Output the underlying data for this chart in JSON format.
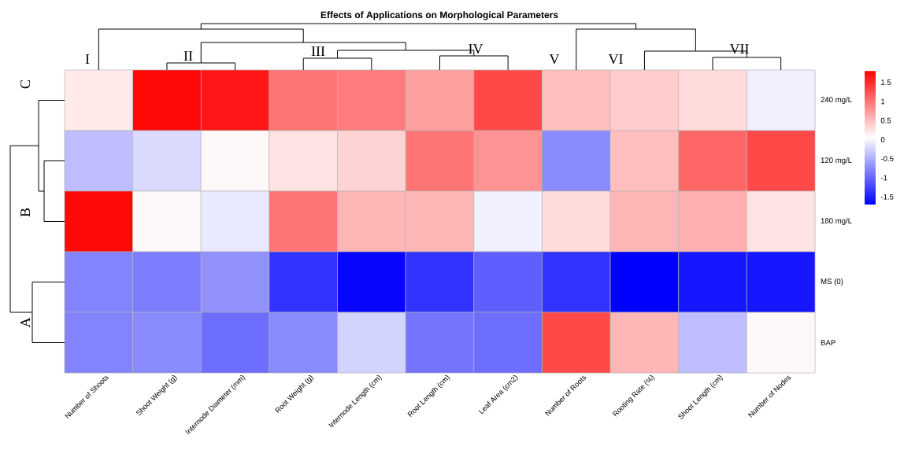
{
  "chart_data": {
    "type": "heatmap",
    "title": "Effects of Applications on Morphological Parameters",
    "categories": [
      "Number of Shoots",
      "Shoot Weight (g)",
      "Internode Diameter (mm)",
      "Root Weight (g)",
      "Internode Length (cm)",
      "Root Length (cm)",
      "Leaf Area (cm2)",
      "Number of Roots",
      "Rooting Rate (%)",
      "Shoot Length (cm)",
      "Number of Nodes"
    ],
    "y_categories": [
      "240 mg/L",
      "120 mg/L",
      "180 mg/L",
      "MS (0)",
      "BAP"
    ],
    "cells": [
      [
        0.2,
        1.75,
        1.65,
        1.0,
        0.95,
        0.7,
        1.3,
        0.5,
        0.4,
        0.3,
        -0.05
      ],
      [
        -0.4,
        -0.2,
        0.1,
        0.25,
        0.35,
        1.0,
        0.8,
        -0.75,
        0.5,
        1.1,
        1.3
      ],
      [
        1.75,
        0.1,
        -0.1,
        1.0,
        0.55,
        0.55,
        -0.05,
        0.3,
        0.55,
        0.6,
        0.25
      ],
      [
        -0.8,
        -0.85,
        -0.7,
        -1.35,
        -1.65,
        -1.35,
        -1.05,
        -1.35,
        -1.7,
        -1.55,
        -1.55
      ],
      [
        -0.8,
        -0.75,
        -0.95,
        -0.75,
        -0.25,
        -0.9,
        -0.95,
        1.3,
        0.55,
        -0.4,
        0.1
      ]
    ],
    "clim": [
      -1.7,
      1.8
    ],
    "cticks": [
      -1.5,
      -1,
      -0.5,
      0,
      0.5,
      1,
      1.5
    ],
    "annotations": [
      "I",
      "II",
      "III",
      "IV",
      "V",
      "VI",
      "VII",
      "C",
      "B",
      "A"
    ]
  }
}
